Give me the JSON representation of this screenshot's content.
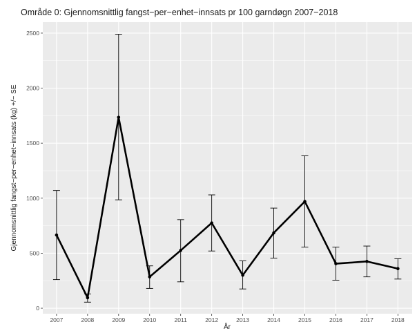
{
  "chart_data": {
    "type": "line",
    "title": "Område 0: Gjennomsnittlig fangst−per−enhet−innsats pr 100 garndøgn 2007−2018",
    "xlabel": "År",
    "ylabel": "Gjennomsnittlig fangst−per−enhet−innsats (kg) +/− SE",
    "x": [
      2007,
      2008,
      2009,
      2010,
      2011,
      2012,
      2013,
      2014,
      2015,
      2016,
      2017,
      2018
    ],
    "x_tick_labels": [
      "2007",
      "2008",
      "2009",
      "2010",
      "2011",
      "2012",
      "2013",
      "2014",
      "2015",
      "2016",
      "2017",
      "2018"
    ],
    "series": [
      {
        "values": [
          665,
          95,
          1735,
          285,
          525,
          775,
          300,
          685,
          970,
          405,
          425,
          360
        ],
        "error_lower": [
          260,
          55,
          985,
          180,
          240,
          520,
          175,
          455,
          555,
          255,
          285,
          265
        ],
        "error_upper": [
          1070,
          130,
          2490,
          385,
          805,
          1030,
          430,
          910,
          1385,
          555,
          565,
          450
        ]
      }
    ],
    "y_ticks": [
      0,
      500,
      1000,
      1500,
      2000,
      2500
    ],
    "y_tick_labels": [
      "0",
      "500",
      "1000",
      "1500",
      "2000",
      "2500"
    ],
    "ylim": [
      -50,
      2600
    ],
    "grid": true,
    "colors": {
      "panel": "#ebebeb",
      "grid": "#ffffff",
      "line": "#000000",
      "text": "#4d4d4d"
    }
  }
}
